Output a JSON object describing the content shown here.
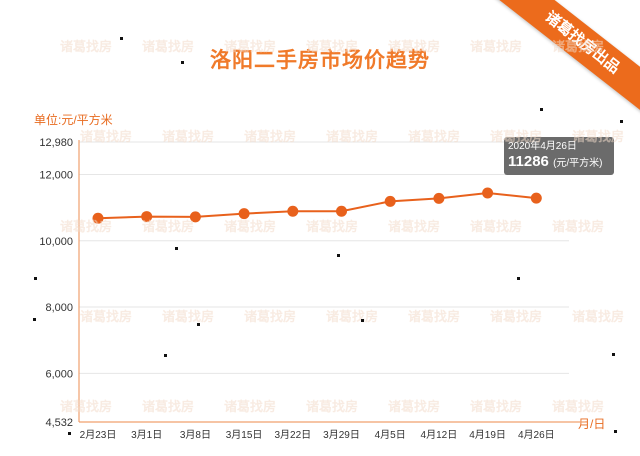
{
  "title": "洛阳二手房市场价趋势",
  "badge": "诸葛找房出品",
  "watermark": "诸葛找房",
  "tooltip": {
    "date": "2020年4月26日",
    "value": "11286",
    "unit": "(元/平方米)"
  },
  "colors": {
    "accent": "#e8611c",
    "title": "#f07a2a",
    "axis": "#f0a06e",
    "grid": "#e6e6e6"
  },
  "chart_data": {
    "type": "line",
    "title": "洛阳二手房市场价趋势",
    "ylabel": "单位:元/平方米",
    "xlabel": "月/日",
    "ylim": [
      4532,
      12980
    ],
    "yticks": [
      "12,980",
      "12,000",
      "10,000",
      "8,000",
      "6,000",
      "4,532"
    ],
    "ytick_values": [
      12980,
      12000,
      10000,
      8000,
      6000,
      4532
    ],
    "categories": [
      "2月23日",
      "3月1日",
      "3月8日",
      "3月15日",
      "3月22日",
      "3月29日",
      "4月5日",
      "4月12日",
      "4月19日",
      "4月26日"
    ],
    "values": [
      10680,
      10730,
      10720,
      10820,
      10890,
      10890,
      11190,
      11280,
      11440,
      11286
    ],
    "grid": true,
    "legend": "none"
  }
}
